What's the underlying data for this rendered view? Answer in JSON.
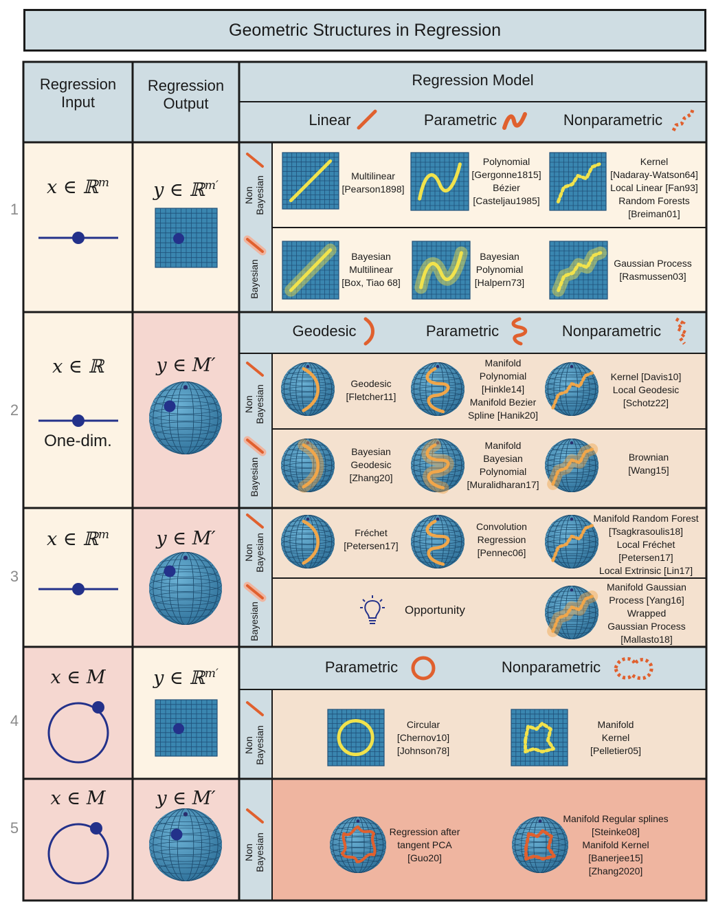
{
  "title": "Geometric Structures in Regression",
  "headers": {
    "input": "Regression\nInput",
    "output": "Regression\nOutput",
    "model": "Regression Model"
  },
  "row_numbers": [
    "1",
    "2",
    "3",
    "4",
    "5"
  ],
  "section_headers": {
    "s1": [
      "Linear",
      "Parametric",
      "Nonparametric"
    ],
    "s2": [
      "Geodesic",
      "Parametric",
      "Nonparametric"
    ],
    "s4": [
      "Parametric",
      "Nonparametric"
    ]
  },
  "side_labels": {
    "non_bayesian": "Non\nBayesian",
    "bayesian": "Bayesian"
  },
  "rows": {
    "r1": {
      "input_math": "x ∈ ℝ",
      "input_sup": "m",
      "output_math": "y ∈ ℝ",
      "output_sup": "m′"
    },
    "r2": {
      "input_math": "x ∈ ℝ",
      "input_caption": "One-dim.",
      "output_math": "y ∈ M′"
    },
    "r3": {
      "input_math": "x ∈ ℝ",
      "input_sup": "m",
      "output_math": "y ∈ M′"
    },
    "r4": {
      "input_math": "x ∈ M",
      "output_math": "y ∈ ℝ",
      "output_sup": "m′"
    },
    "r5": {
      "input_math": "x ∈ M",
      "output_math": "y ∈ M′"
    }
  },
  "methods": {
    "r1_nb": [
      "Multilinear\n[Pearson1898]",
      "Polynomial\n[Gergonne1815]\nBézier\n[Casteljau1985]",
      "Kernel\n[Nadaray-Watson64]\nLocal Linear [Fan93]\nRandom Forests\n[Breiman01]"
    ],
    "r1_b": [
      "Bayesian\nMultilinear\n[Box, Tiao 68]",
      "Bayesian\nPolynomial\n[Halpern73]",
      "Gaussian Process\n[Rasmussen03]"
    ],
    "r2_nb": [
      "Geodesic\n[Fletcher11]",
      "Manifold\nPolynomial\n[Hinkle14]\nManifold Bezier\nSpline [Hanik20]",
      "Kernel [Davis10]\nLocal Geodesic\n[Schotz22]"
    ],
    "r2_b": [
      "Bayesian\nGeodesic\n[Zhang20]",
      "Manifold\nBayesian\nPolynomial\n[Muralidharan17]",
      "Brownian\n[Wang15]"
    ],
    "r3_nb": [
      "Fréchet\n[Petersen17]",
      "Convolution\nRegression\n[Pennec06]",
      "Manifold Random Forest\n[Tsagkrasoulis18]\nLocal Fréchet\n[Petersen17]\nLocal Extrinsic [Lin17]"
    ],
    "r3_b": [
      "Opportunity",
      "Manifold Gaussian\nProcess [Yang16]\nWrapped\nGaussian Process\n[Mallasto18]"
    ],
    "r4_nb": [
      "Circular\n[Chernov10]\n[Johnson78]",
      "Manifold\nKernel\n[Pelletier05]"
    ],
    "r5_nb": [
      "Regression after\ntangent PCA\n[Guo20]",
      "Manifold Regular splines\n[Steinke08]\nManifold Kernel\n[Banerjee15]\n[Zhang2020]"
    ]
  },
  "colors": {
    "header_bg": "#cfdde3",
    "cream": "#fdf3e4",
    "peach": "#f4e1cf",
    "pink": "#f5d7d0",
    "salmon": "#efb5a0",
    "accent": "#e0602e",
    "navy": "#23318a",
    "grid_blue": "#3a86b0",
    "yellow": "#f1e24c",
    "orange_curve": "#f0a64a"
  }
}
